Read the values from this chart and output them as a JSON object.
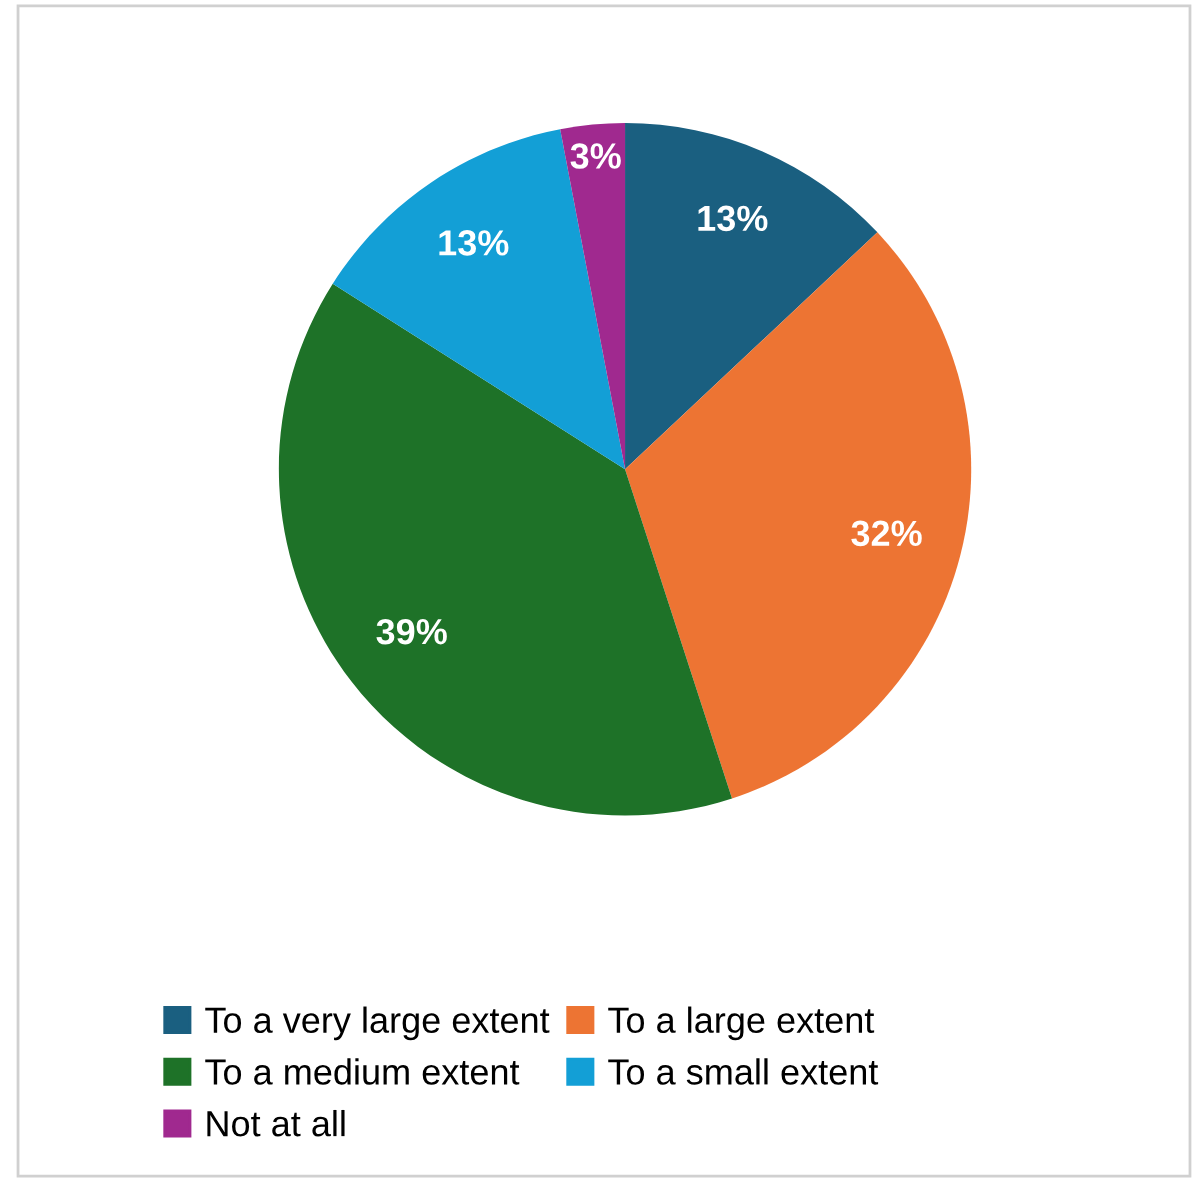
{
  "chart_data": {
    "type": "pie",
    "categories": [
      "To a very large extent",
      "To a large extent",
      "To a medium extent",
      "To a small extent",
      "Not at all"
    ],
    "values": [
      13,
      32,
      39,
      13,
      3
    ],
    "colors": [
      "#1a5f80",
      "#ed7433",
      "#1e7228",
      "#139fd6",
      "#a0298f"
    ],
    "value_labels": [
      "13%",
      "32%",
      "39%",
      "13%",
      "3%"
    ],
    "legend": "bottom"
  }
}
